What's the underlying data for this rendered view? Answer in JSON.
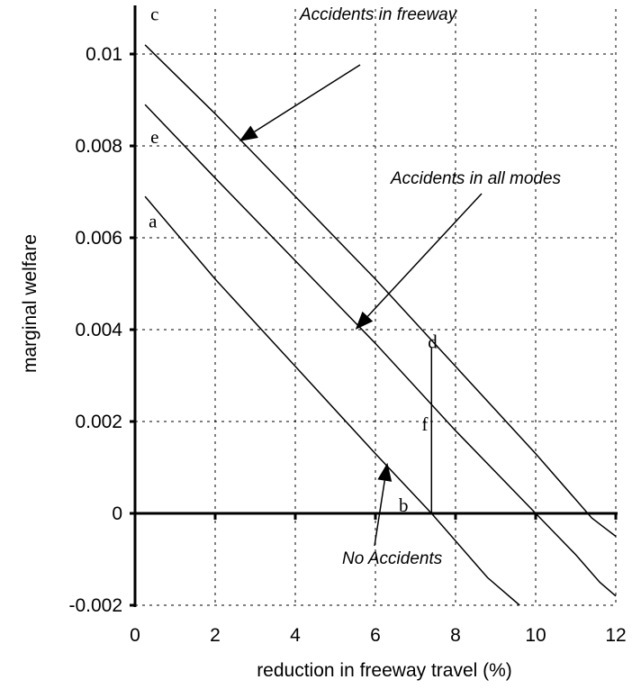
{
  "chart_data": {
    "type": "line",
    "title": "",
    "xlabel": "reduction in freeway travel (%)",
    "ylabel": "marginal welfare",
    "xlim": [
      0,
      12
    ],
    "ylim": [
      -0.002,
      0.0111
    ],
    "x_ticks": [
      "0",
      "2",
      "4",
      "6",
      "8",
      "10",
      "12"
    ],
    "y_ticks": [
      "-0.002",
      "0",
      "0.002",
      "0.004",
      "0.006",
      "0.008",
      "0.01"
    ],
    "grid": "dashed",
    "series": [
      {
        "label": "c",
        "points": [
          [
            0.25,
            0.0102
          ],
          [
            2,
            0.0087
          ],
          [
            4,
            0.0069
          ],
          [
            6,
            0.0051
          ],
          [
            8,
            0.0032
          ],
          [
            10,
            0.0013
          ],
          [
            11.4,
            -0.0001
          ],
          [
            11.7,
            -0.0003
          ],
          [
            12,
            -0.0005
          ]
        ]
      },
      {
        "label": "e",
        "points": [
          [
            0.25,
            0.0089
          ],
          [
            2,
            0.0073
          ],
          [
            4,
            0.0055
          ],
          [
            6,
            0.0037
          ],
          [
            8,
            0.0018
          ],
          [
            10,
            0.0
          ],
          [
            11,
            -0.0009
          ],
          [
            11.6,
            -0.0015
          ],
          [
            12,
            -0.0018
          ]
        ]
      },
      {
        "label": "a",
        "points": [
          [
            0.25,
            0.0069
          ],
          [
            2,
            0.0051
          ],
          [
            4,
            0.0032
          ],
          [
            6,
            0.0013
          ],
          [
            7.4,
            0.0
          ],
          [
            8.8,
            -0.0014
          ],
          [
            9.6,
            -0.002
          ]
        ]
      }
    ],
    "annotations": [
      {
        "text": "Accidents in freeway",
        "arrow_to": [
          2.6,
          0.0081
        ]
      },
      {
        "text": "Accidents in all modes",
        "arrow_to": [
          5.5,
          0.004
        ]
      },
      {
        "text": "No Accidents",
        "arrow_to": [
          6.3,
          0.0011
        ]
      }
    ],
    "point_labels": [
      {
        "text": "c",
        "x": 0.25,
        "y": 0.0107
      },
      {
        "text": "e",
        "x": 0.25,
        "y": 0.0081
      },
      {
        "text": "a",
        "x": 0.25,
        "y": 0.0063
      },
      {
        "text": "d",
        "x": 7.4,
        "y": 0.0036
      },
      {
        "text": "f",
        "x": 7.2,
        "y": 0.0018
      },
      {
        "text": "b",
        "x": 6.9,
        "y": 0.0
      }
    ],
    "vertical_segment": {
      "x": 7.4,
      "y_from": 0.0,
      "y_to": 0.0036
    }
  }
}
